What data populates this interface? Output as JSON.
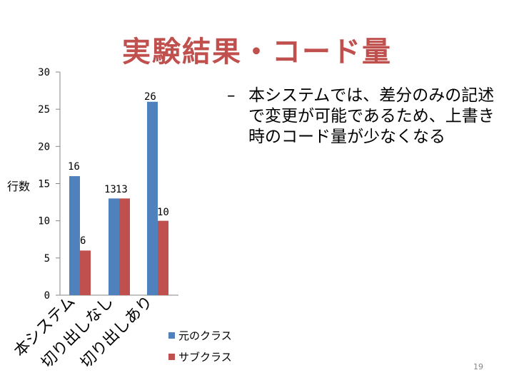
{
  "slide": {
    "title": "実験結果・コード量",
    "bullet_dash": "–",
    "bullet_text": "本システムでは、差分のみの記述で変更が可能であるため、上書き時のコード量が少なくなる",
    "page_number": "19"
  },
  "colors": {
    "title": "#c0504d",
    "series_blue": "#4f81bd",
    "series_red": "#c0504d"
  },
  "chart_data": {
    "type": "bar",
    "categories": [
      "本システム",
      "切り出しなし",
      "切り出しあり"
    ],
    "series": [
      {
        "name": "元のクラス",
        "values": [
          16,
          13,
          26
        ],
        "color": "#4f81bd"
      },
      {
        "name": "サブクラス",
        "values": [
          6,
          13,
          10
        ],
        "color": "#c0504d"
      }
    ],
    "ylabel": "行数",
    "ylim": [
      0,
      30
    ],
    "yticks": [
      0,
      5,
      10,
      15,
      20,
      25,
      30
    ],
    "data_labels": [
      [
        "16",
        "6"
      ],
      [
        "13",
        "13"
      ],
      [
        "26",
        "10"
      ]
    ],
    "grid": false,
    "legend_position": "bottom-right"
  }
}
